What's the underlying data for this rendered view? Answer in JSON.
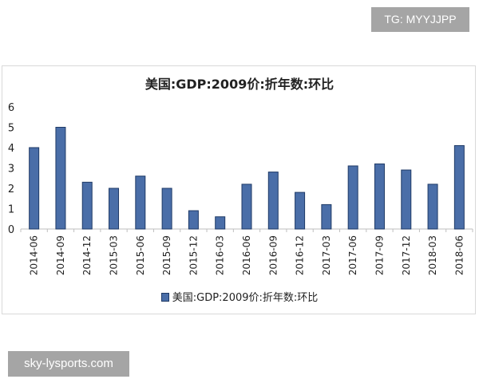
{
  "watermark_top": "TG: MYYJJPP",
  "watermark_bottom": "sky-lysports.com",
  "chart_data": {
    "type": "bar",
    "title": "美国:GDP:2009价:折年数:环比",
    "xlabel": "",
    "ylabel": "",
    "ylim": [
      0,
      6
    ],
    "yticks": [
      0,
      1,
      2,
      3,
      4,
      5,
      6
    ],
    "grid": false,
    "legend": "bottom",
    "bar_color": "#4a6ea8",
    "bar_border_color": "#1f3a66",
    "categories": [
      "2014-06",
      "2014-09",
      "2014-12",
      "2015-03",
      "2015-06",
      "2015-09",
      "2015-12",
      "2016-03",
      "2016-06",
      "2016-09",
      "2016-12",
      "2017-03",
      "2017-06",
      "2017-09",
      "2017-12",
      "2018-03",
      "2018-06"
    ],
    "series": [
      {
        "name": "美国:GDP:2009价:折年数:环比",
        "values": [
          4.0,
          5.0,
          2.3,
          2.0,
          2.6,
          2.0,
          0.9,
          0.6,
          2.2,
          2.8,
          1.8,
          1.2,
          3.1,
          3.2,
          2.9,
          2.2,
          4.1
        ]
      }
    ]
  }
}
